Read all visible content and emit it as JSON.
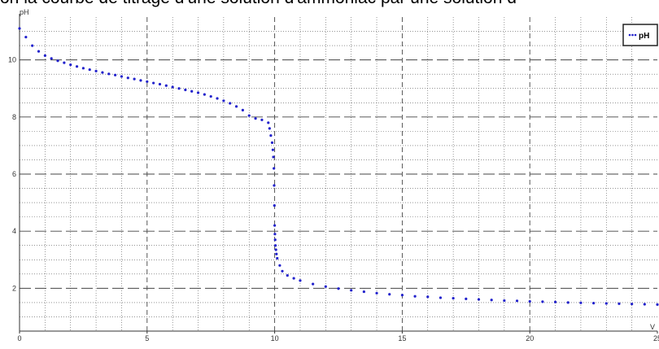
{
  "page": {
    "title": "on la courbe de titrage d'une solution d'ammoniac par une solution d"
  },
  "chart_data": {
    "type": "scatter",
    "title": "on la courbe de titrage d'une solution d'ammoniac par une solution d",
    "xlabel": "V",
    "ylabel": "pH",
    "xlim": [
      0,
      25
    ],
    "ylim": [
      0.5,
      11.5
    ],
    "x_ticks": [
      "0",
      "5",
      "10",
      "15",
      "20",
      "25"
    ],
    "y_ticks": [
      "2",
      "4",
      "6",
      "8",
      "10"
    ],
    "grid": true,
    "legend_position": "top-right",
    "series": [
      {
        "name": "pH",
        "color": "#2222cc",
        "x": [
          0,
          0.25,
          0.5,
          0.75,
          1,
          1.25,
          1.5,
          1.75,
          2,
          2.25,
          2.5,
          2.75,
          3,
          3.25,
          3.5,
          3.75,
          4,
          4.25,
          4.5,
          4.75,
          5,
          5.25,
          5.5,
          5.75,
          6,
          6.25,
          6.5,
          6.75,
          7,
          7.25,
          7.5,
          7.75,
          8,
          8.25,
          8.5,
          8.75,
          9,
          9.25,
          9.5,
          9.75,
          9.8,
          9.85,
          9.9,
          9.93,
          9.95,
          9.97,
          9.98,
          9.99,
          10,
          10.01,
          10.02,
          10.03,
          10.05,
          10.07,
          10.1,
          10.2,
          10.3,
          10.5,
          10.75,
          11,
          11.5,
          12,
          12.5,
          13,
          13.5,
          14,
          14.5,
          15,
          15.5,
          16,
          16.5,
          17,
          17.5,
          18,
          18.5,
          19,
          19.5,
          20,
          20.5,
          21,
          21.5,
          22,
          22.5,
          23,
          23.5,
          24,
          24.5,
          25
        ],
        "y": [
          11.1,
          10.8,
          10.5,
          10.3,
          10.15,
          10.05,
          9.97,
          9.9,
          9.83,
          9.77,
          9.71,
          9.66,
          9.61,
          9.56,
          9.51,
          9.47,
          9.42,
          9.37,
          9.33,
          9.28,
          9.24,
          9.19,
          9.15,
          9.1,
          9.05,
          9.0,
          8.95,
          8.9,
          8.85,
          8.79,
          8.72,
          8.65,
          8.57,
          8.48,
          8.37,
          8.24,
          8.05,
          7.95,
          7.9,
          7.8,
          7.6,
          7.35,
          7.1,
          6.85,
          6.6,
          6.2,
          5.6,
          4.9,
          4.2,
          3.9,
          3.7,
          3.5,
          3.35,
          3.2,
          3.05,
          2.8,
          2.6,
          2.45,
          2.35,
          2.27,
          2.15,
          2.06,
          1.99,
          1.93,
          1.88,
          1.83,
          1.79,
          1.76,
          1.72,
          1.7,
          1.67,
          1.65,
          1.63,
          1.61,
          1.59,
          1.57,
          1.56,
          1.54,
          1.53,
          1.52,
          1.5,
          1.49,
          1.48,
          1.47,
          1.46,
          1.45,
          1.44,
          1.43
        ]
      }
    ]
  }
}
